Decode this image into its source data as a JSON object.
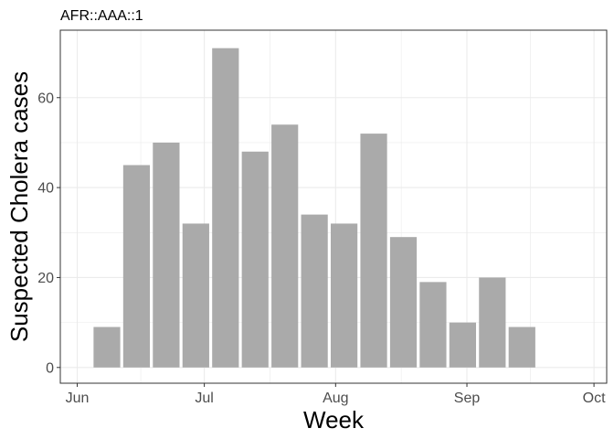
{
  "chart_data": {
    "type": "bar",
    "title": "AFR::AAA::1",
    "xlabel": "Week",
    "ylabel": "Suspected Cholera cases",
    "x_ticks": [
      "Jun",
      "Jul",
      "Aug",
      "Sep",
      "Oct"
    ],
    "x_tick_dates": [
      "2023-06-01",
      "2023-07-01",
      "2023-08-01",
      "2023-09-01",
      "2023-10-01"
    ],
    "x_range": [
      "2023-05-28",
      "2023-10-04"
    ],
    "y_ticks": [
      0,
      20,
      40,
      60
    ],
    "ylim": [
      -3.5,
      75
    ],
    "grid": true,
    "bar_color": "#aaaaaa",
    "categories": [
      "2023-06-08",
      "2023-06-15",
      "2023-06-22",
      "2023-06-29",
      "2023-07-06",
      "2023-07-13",
      "2023-07-20",
      "2023-07-27",
      "2023-08-03",
      "2023-08-10",
      "2023-08-17",
      "2023-08-24",
      "2023-08-31",
      "2023-09-07",
      "2023-09-14"
    ],
    "values": [
      9,
      45,
      50,
      32,
      71,
      48,
      54,
      34,
      32,
      52,
      29,
      19,
      10,
      20,
      9
    ]
  }
}
